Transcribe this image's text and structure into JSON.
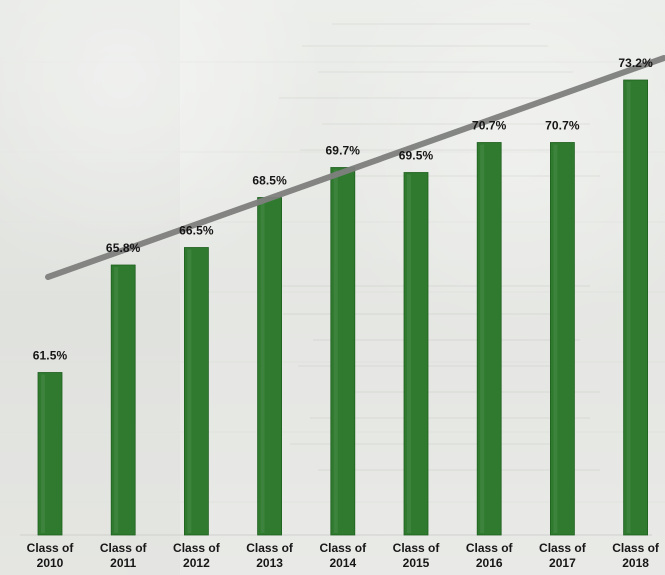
{
  "chart_data": {
    "type": "bar",
    "categories": [
      [
        "Class of",
        "2010"
      ],
      [
        "Class of",
        "2011"
      ],
      [
        "Class of",
        "2012"
      ],
      [
        "Class of",
        "2013"
      ],
      [
        "Class of",
        "2014"
      ],
      [
        "Class of",
        "2015"
      ],
      [
        "Class of",
        "2016"
      ],
      [
        "Class of",
        "2017"
      ],
      [
        "Class of",
        "2018"
      ]
    ],
    "values": [
      61.5,
      65.8,
      66.5,
      68.5,
      69.7,
      69.5,
      70.7,
      70.7,
      73.2
    ],
    "labels": [
      "61.5%",
      "65.8%",
      "66.5%",
      "68.5%",
      "69.7%",
      "69.5%",
      "70.7%",
      "70.7%",
      "73.2%"
    ],
    "trendline": true,
    "ylim": [
      55,
      74
    ],
    "colors": {
      "bar": "#2f7a2f",
      "trend": "#7e807d",
      "text": "#171717"
    }
  }
}
